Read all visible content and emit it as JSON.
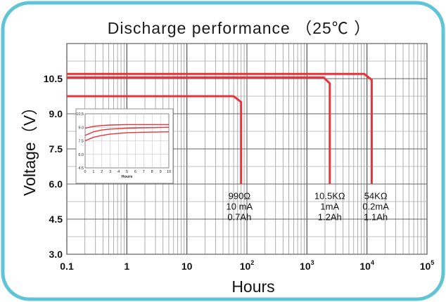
{
  "chart_data": {
    "type": "line",
    "title": "Discharge performance （25℃ ）",
    "xlabel": "Hours",
    "ylabel": "Voltage（V）",
    "x_scale": "log",
    "xlim": [
      0.1,
      100000
    ],
    "ylim": [
      3.0,
      12.0
    ],
    "x_ticks": [
      {
        "value": 0.1,
        "label": "0.1"
      },
      {
        "value": 1,
        "label": "1"
      },
      {
        "value": 10,
        "label": "10"
      },
      {
        "value": 100,
        "label": "10",
        "exp": "2"
      },
      {
        "value": 1000,
        "label": "10",
        "exp": "3"
      },
      {
        "value": 10000,
        "label": "10",
        "exp": "4"
      },
      {
        "value": 100000,
        "label": "10",
        "exp": "5"
      }
    ],
    "y_ticks": [
      {
        "value": 3.0,
        "label": "3.0"
      },
      {
        "value": 4.5,
        "label": "4.5"
      },
      {
        "value": 6.0,
        "label": "6.0"
      },
      {
        "value": 7.5,
        "label": "7.5"
      },
      {
        "value": 9.0,
        "label": "9.0"
      },
      {
        "value": 10.5,
        "label": "10.5"
      }
    ],
    "grid": true,
    "series_color": "#e8333a",
    "series": [
      {
        "x": [
          0.1,
          60,
          80,
          80
        ],
        "y": [
          9.75,
          9.75,
          9.5,
          6.0
        ]
      },
      {
        "x": [
          0.1,
          1900,
          2400,
          2400
        ],
        "y": [
          10.55,
          10.55,
          10.3,
          6.0
        ]
      },
      {
        "x": [
          0.1,
          9000,
          12000,
          12000
        ],
        "y": [
          10.7,
          10.7,
          10.45,
          6.0
        ]
      }
    ],
    "annotations": [
      {
        "x": 75,
        "y": 5.35,
        "lines": [
          "990Ω",
          "10 mA",
          "0.7Ah"
        ]
      },
      {
        "x": 2400,
        "y": 5.35,
        "lines": [
          "10.5KΩ",
          "1mA",
          "1.2Ah"
        ]
      },
      {
        "x": 14000,
        "y": 5.35,
        "lines": [
          "54KΩ",
          "0.2mA",
          "1.1Ah"
        ]
      }
    ],
    "inset": {
      "xlabel": "Hours",
      "xlim": [
        0,
        10
      ],
      "ylim": [
        4.5,
        10.5
      ],
      "x_ticks": [
        "0",
        "1",
        "2",
        "3",
        "4",
        "5",
        "6",
        "7",
        "8",
        "9",
        "10"
      ],
      "y_ticks": [
        "4.5",
        "6.0",
        "7.5",
        "9.0",
        "10.5"
      ],
      "series": [
        {
          "x": [
            0,
            1,
            2,
            3,
            5,
            7,
            10
          ],
          "y": [
            8.9,
            9.1,
            9.2,
            9.25,
            9.3,
            9.3,
            9.3
          ]
        },
        {
          "x": [
            0,
            1,
            2,
            3,
            5,
            7,
            10
          ],
          "y": [
            8.1,
            8.5,
            8.7,
            8.8,
            8.9,
            8.95,
            9.0
          ]
        },
        {
          "x": [
            0,
            1,
            2,
            3,
            5,
            7,
            10
          ],
          "y": [
            7.5,
            7.9,
            8.1,
            8.25,
            8.4,
            8.45,
            8.5
          ]
        }
      ]
    }
  }
}
